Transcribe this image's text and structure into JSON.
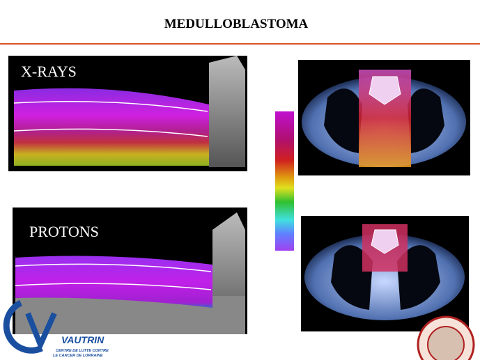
{
  "slide": {
    "title": "MEDULLOBLASTOMA",
    "panels": [
      {
        "label": "X-RAYS"
      },
      {
        "label": "PROTONS"
      }
    ],
    "logo": {
      "name": "VAUTRIN",
      "subtitle_line1": "CENTRE DE LUTTE CONTRE",
      "subtitle_line2": "LE CANCER DE LORRAINE"
    }
  }
}
